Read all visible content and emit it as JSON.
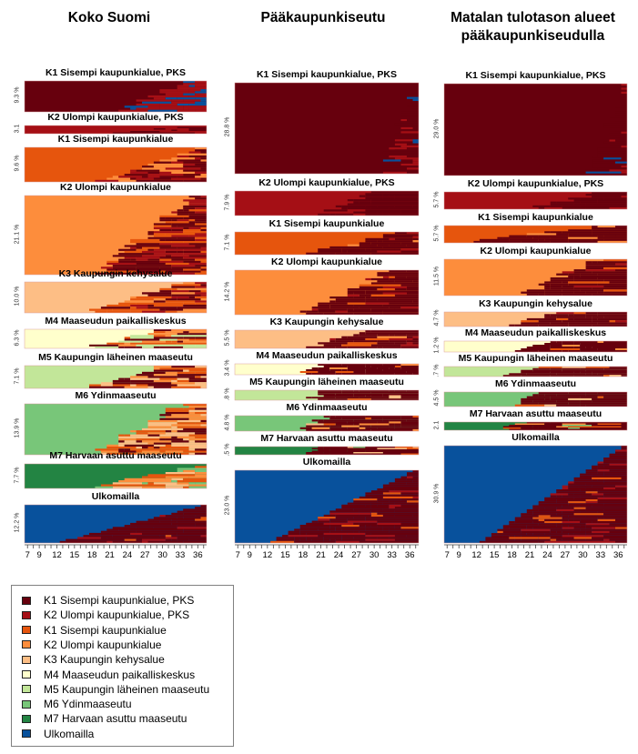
{
  "chart_data": {
    "type": "heatmap",
    "description": "Sequence index plots of residential region type by age, grouped by region type at age 7",
    "xlabel": "",
    "x_range": [
      7,
      37
    ],
    "x_ticks": [
      "7",
      "9",
      "12",
      "15",
      "18",
      "21",
      "24",
      "27",
      "30",
      "33",
      "36"
    ],
    "categories": [
      {
        "id": "K1PKS",
        "label": "K1 Sisempi kaupunkialue, PKS",
        "color": "#67000d"
      },
      {
        "id": "K2PKS",
        "label": "K2 Ulompi kaupunkialue, PKS",
        "color": "#a50f15"
      },
      {
        "id": "K1",
        "label": "K1 Sisempi kaupunkialue",
        "color": "#e6550d"
      },
      {
        "id": "K2",
        "label": "K2 Ulompi kaupunkialue",
        "color": "#fd8d3c"
      },
      {
        "id": "K3",
        "label": "K3 Kaupungin kehysalue",
        "color": "#fdbe85"
      },
      {
        "id": "M4",
        "label": "M4 Maaseudun paikalliskeskus",
        "color": "#ffffcc"
      },
      {
        "id": "M5",
        "label": "M5 Kaupungin läheinen maaseutu",
        "color": "#c2e699"
      },
      {
        "id": "M6",
        "label": "M6 Ydinmaaseutu",
        "color": "#78c679"
      },
      {
        "id": "M7",
        "label": "M7 Harvaan asuttu maaseutu",
        "color": "#238443"
      },
      {
        "id": "ULKO",
        "label": "Ulkomailla",
        "color": "#08519c"
      }
    ],
    "groups": [
      {
        "title": "Koko Suomi",
        "panels": [
          {
            "cat": "K1PKS",
            "title": "K1 Sisempi kaupunkialue, PKS",
            "share_label": "9.3 %",
            "share": 9.3,
            "leave_age_start": 24,
            "leave_age_end": 34
          },
          {
            "cat": "K2PKS",
            "title": "K2 Ulompi kaupunkialue, PKS",
            "share_label": "3.1",
            "share": 3.1,
            "leave_age_start": 21,
            "leave_age_end": 36
          },
          {
            "cat": "K1",
            "title": "K1 Sisempi kaupunkialue",
            "share_label": "9.6 %",
            "share": 9.6,
            "leave_age_start": 20,
            "leave_age_end": 36
          },
          {
            "cat": "K2",
            "title": "K2 Ulompi kaupunkialue",
            "share_label": "21.1 %",
            "share": 21.1,
            "leave_age_start": 19,
            "leave_age_end": 36
          },
          {
            "cat": "K3",
            "title": "K3 Kaupungin kehysalue",
            "share_label": "10.0 %",
            "share": 10.0,
            "leave_age_start": 18,
            "leave_age_end": 34
          },
          {
            "cat": "M4",
            "title": "M4 Maaseudun paikalliskeskus",
            "share_label": "6.3 %",
            "share": 6.3,
            "leave_age_start": 18,
            "leave_age_end": 30
          },
          {
            "cat": "M5",
            "title": "M5 Kaupungin läheinen maaseutu",
            "share_label": "7.1 %",
            "share": 7.1,
            "leave_age_start": 18,
            "leave_age_end": 30
          },
          {
            "cat": "M6",
            "title": "M6 Ydinmaaseutu",
            "share_label": "13.9 %",
            "share": 13.9,
            "leave_age_start": 19,
            "leave_age_end": 34
          },
          {
            "cat": "M7",
            "title": "M7 Harvaan asuttu maaseutu",
            "share_label": "7.7 %",
            "share": 7.7,
            "leave_age_start": 19,
            "leave_age_end": 37
          },
          {
            "cat": "ULKO",
            "title": "Ulkomailla",
            "share_label": "12.2 %",
            "share": 12.2,
            "leave_age_start": 13,
            "leave_age_end": 37
          }
        ]
      },
      {
        "title": "Pääkaupunkiseutu",
        "panels": [
          {
            "cat": "K1PKS",
            "title": "K1 Sisempi kaupunkialue, PKS",
            "share_label": "28.8 %",
            "share": 28.8,
            "leave_age_start": 36,
            "leave_age_end": 36
          },
          {
            "cat": "K2PKS",
            "title": "K2 Ulompi kaupunkialue, PKS",
            "share_label": "7.9 %",
            "share": 7.9,
            "leave_age_start": 22,
            "leave_age_end": 30
          },
          {
            "cat": "K1",
            "title": "K1 Sisempi kaupunkialue",
            "share_label": "7.1 %",
            "share": 7.1,
            "leave_age_start": 19,
            "leave_age_end": 34
          },
          {
            "cat": "K2",
            "title": "K2 Ulompi kaupunkialue",
            "share_label": "14.2 %",
            "share": 14.2,
            "leave_age_start": 19,
            "leave_age_end": 33
          },
          {
            "cat": "K3",
            "title": "K3 Kaupungin kehysalue",
            "share_label": "5.5 %",
            "share": 5.5,
            "leave_age_start": 20,
            "leave_age_end": 28
          },
          {
            "cat": "M4",
            "title": "M4 Maaseudun paikalliskeskus",
            "share_label": "3.4 %",
            "share": 3.4,
            "leave_age_start": 19,
            "leave_age_end": 22
          },
          {
            "cat": "M5",
            "title": "M5 Kaupungin läheinen maaseutu",
            "share_label": ".8 %",
            "share": 0.8,
            "leave_age_start": 20,
            "leave_age_end": 22
          },
          {
            "cat": "M6",
            "title": "M6 Ydinmaaseutu",
            "share_label": "4.8 %",
            "share": 4.8,
            "leave_age_start": 19,
            "leave_age_end": 22
          },
          {
            "cat": "M7",
            "title": "M7 Harvaan asuttu maaseutu",
            "share_label": ".5 %",
            "share": 0.5,
            "leave_age_start": 20,
            "leave_age_end": 22
          },
          {
            "cat": "ULKO",
            "title": "Ulkomailla",
            "share_label": "23.0 %",
            "share": 23.0,
            "leave_age_start": 13,
            "leave_age_end": 37
          }
        ]
      },
      {
        "title": "Matalan tulotason alueet pääkaupunkiseudulla",
        "panels": [
          {
            "cat": "K1PKS",
            "title": "K1 Sisempi kaupunkialue, PKS",
            "share_label": "29.0 %",
            "share": 29.0,
            "leave_age_start": 37,
            "leave_age_end": 37
          },
          {
            "cat": "K2PKS",
            "title": "K2 Ulompi kaupunkialue, PKS",
            "share_label": "5.7 %",
            "share": 5.7,
            "leave_age_start": 22,
            "leave_age_end": 33
          },
          {
            "cat": "K1",
            "title": "K1 Sisempi kaupunkialue",
            "share_label": "5.7 %",
            "share": 5.7,
            "leave_age_start": 11,
            "leave_age_end": 33
          },
          {
            "cat": "K2",
            "title": "K2 Ulompi kaupunkialue",
            "share_label": "11.5 %",
            "share": 11.5,
            "leave_age_start": 20,
            "leave_age_end": 33
          },
          {
            "cat": "K3",
            "title": "K3 Kaupungin kehysalue",
            "share_label": "4.7 %",
            "share": 4.7,
            "leave_age_start": 17,
            "leave_age_end": 26
          },
          {
            "cat": "M4",
            "title": "M4 Maaseudun paikalliskeskus",
            "share_label": "1.2 %",
            "share": 1.2,
            "leave_age_start": 18,
            "leave_age_end": 24
          },
          {
            "cat": "M5",
            "title": "M5 Kaupungin läheinen maaseutu",
            "share_label": ".7 %",
            "share": 0.7,
            "leave_age_start": 18,
            "leave_age_end": 22
          },
          {
            "cat": "M6",
            "title": "M6 Ydinmaaseutu",
            "share_label": "4.5 %",
            "share": 4.5,
            "leave_age_start": 18,
            "leave_age_end": 22
          },
          {
            "cat": "M7",
            "title": "M7 Harvaan asuttu maaseutu",
            "share_label": "2.1",
            "share": 2.1,
            "leave_age_start": 17,
            "leave_age_end": 21
          },
          {
            "cat": "ULKO",
            "title": "Ulkomailla",
            "share_label": "30.9 %",
            "share": 30.9,
            "leave_age_start": 13,
            "leave_age_end": 37
          }
        ]
      }
    ],
    "legend_position": "bottom-left"
  },
  "legend": {
    "items": [
      "K1 Sisempi kaupunkialue, PKS",
      "K2 Ulompi kaupunkialue, PKS",
      "K1 Sisempi kaupunkialue",
      "K2 Ulompi kaupunkialue",
      "K3 Kaupungin kehysalue",
      "M4 Maaseudun paikalliskeskus",
      "M5 Kaupungin läheinen maaseutu",
      "M6 Ydinmaaseutu",
      "M7 Harvaan asuttu maaseutu",
      "Ulkomailla"
    ]
  }
}
